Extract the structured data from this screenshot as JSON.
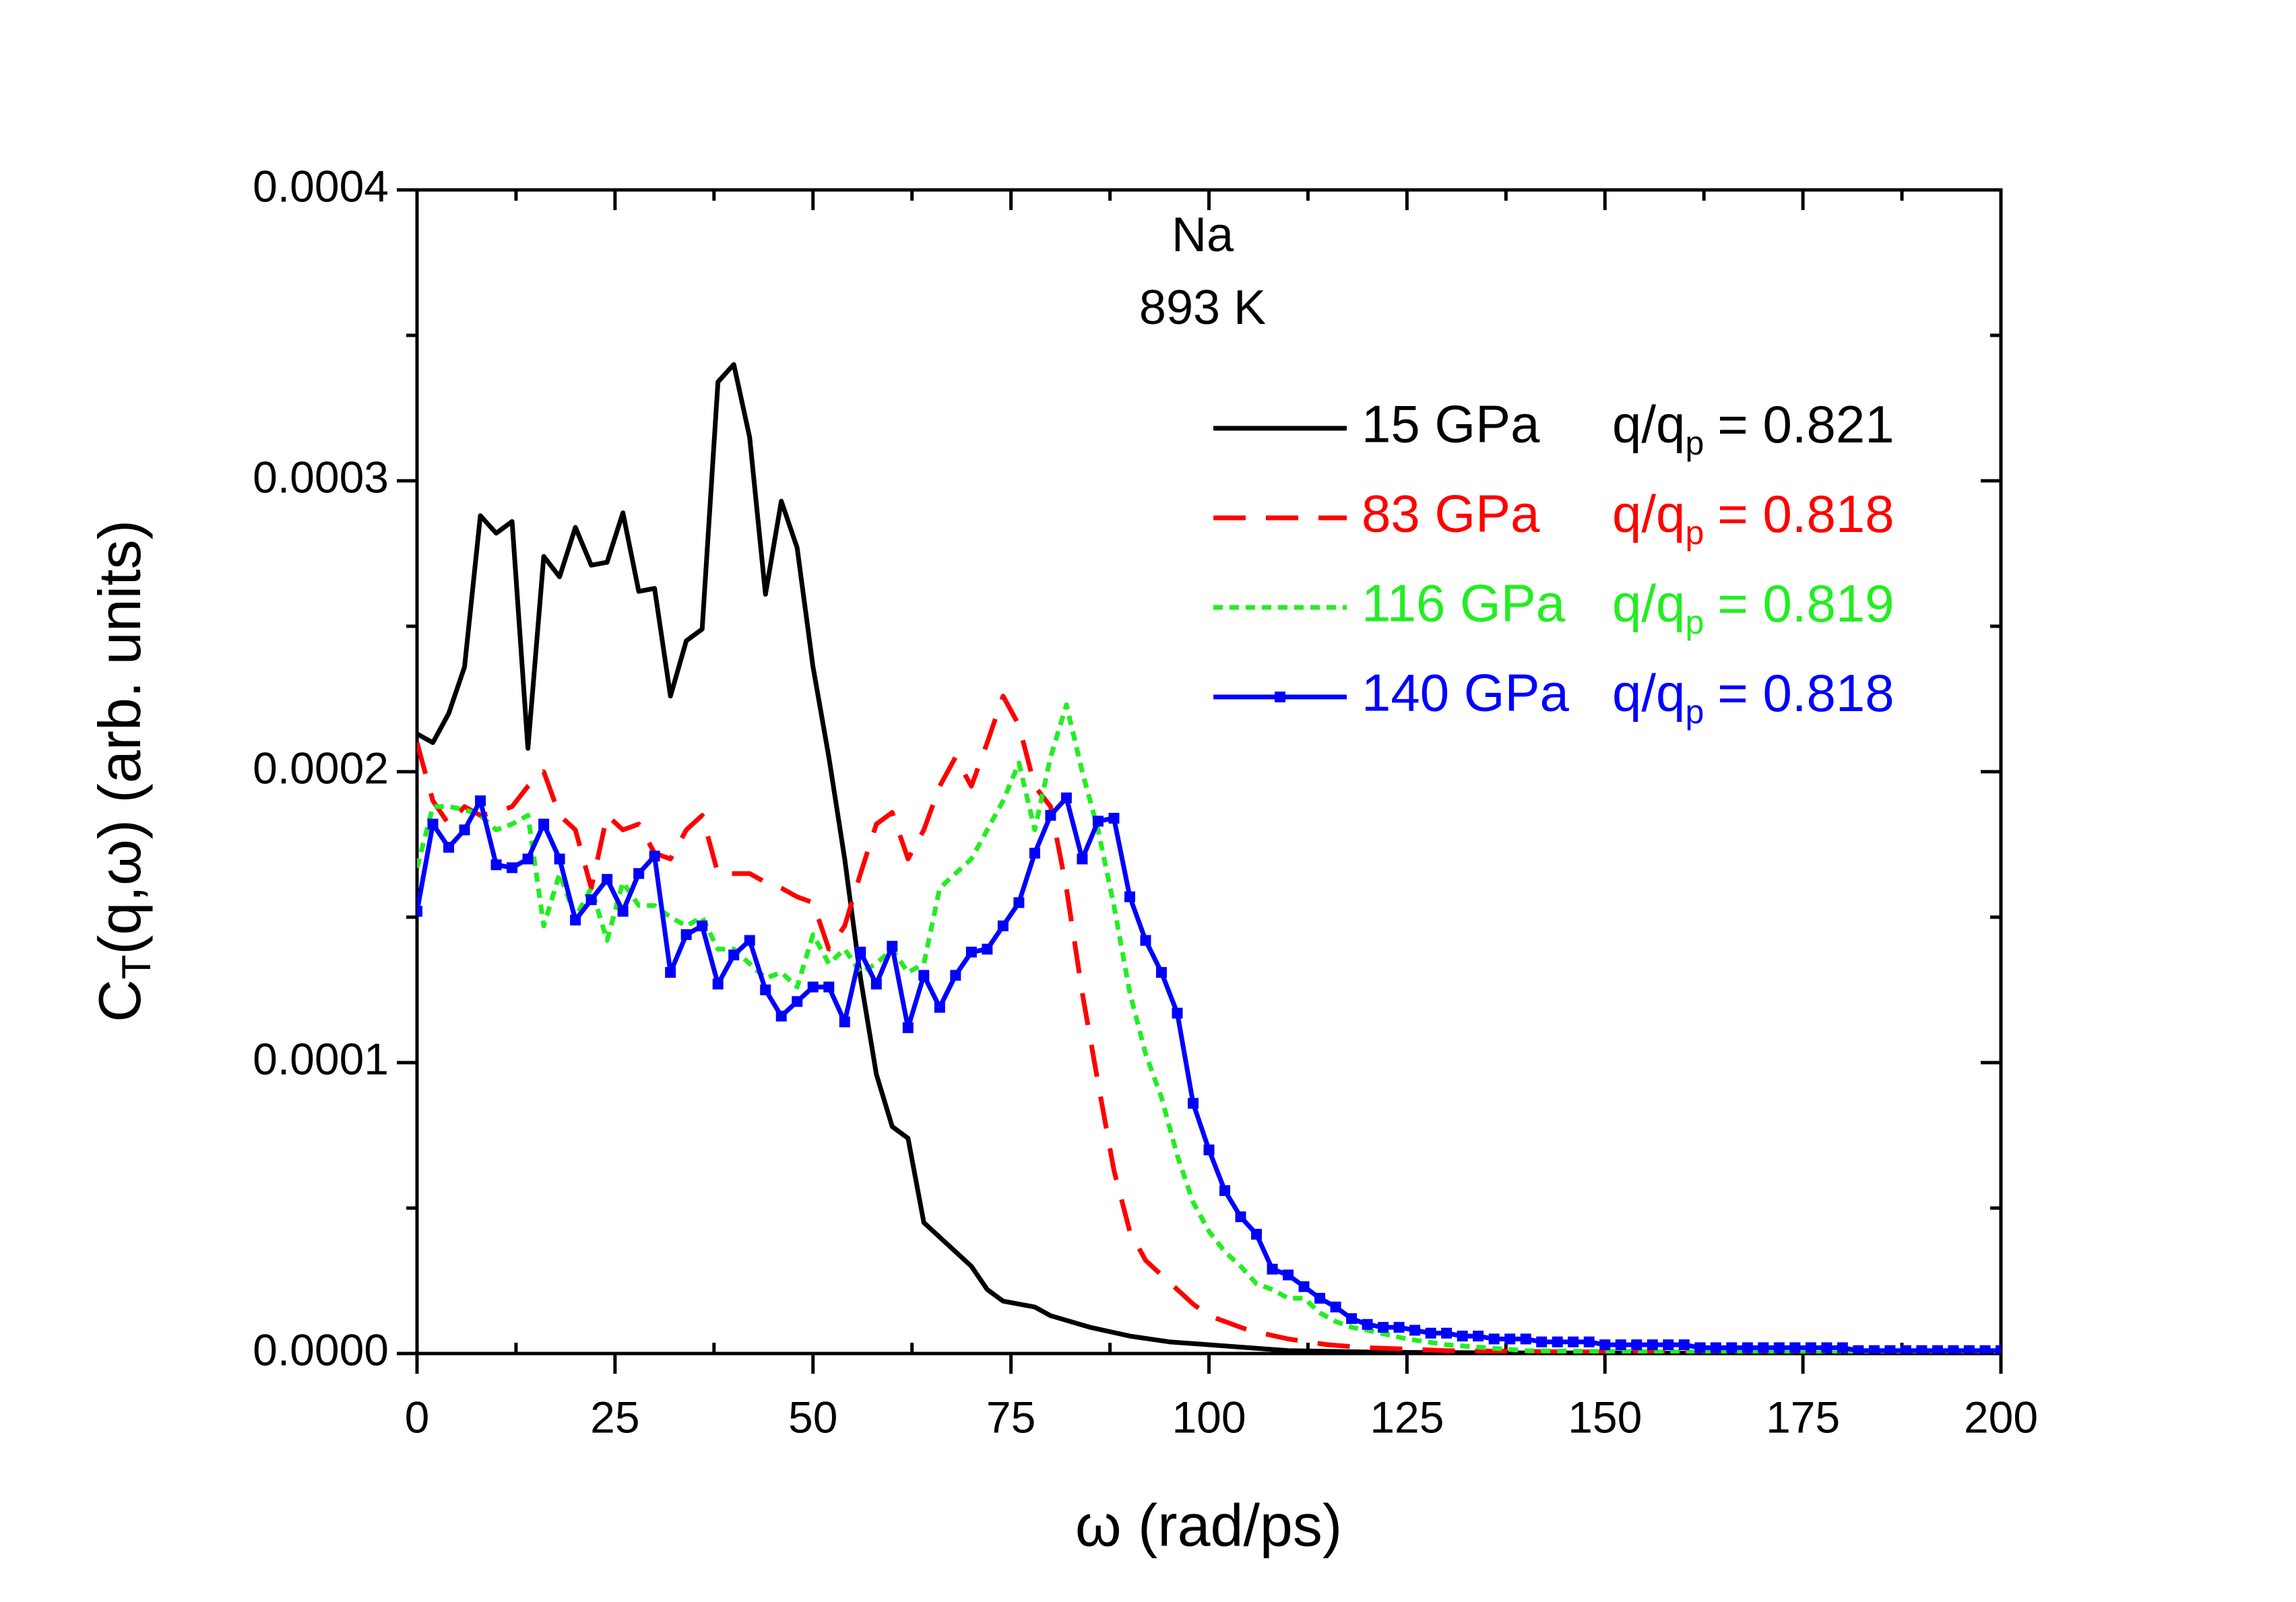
{
  "chart_data": {
    "type": "line",
    "annotations": [
      "Na",
      "893 K"
    ],
    "x_label": "ω (rad/ps)",
    "y_label": {
      "text": "C",
      "subscript": "T",
      "rest": "(q,ω) (arb. units)"
    },
    "ratio_symbol": "q/q",
    "ratio_subscript": "p",
    "xlim": [
      0,
      200
    ],
    "xticks": [
      0,
      25,
      50,
      75,
      100,
      125,
      150,
      175,
      200
    ],
    "xminor_ticks": [
      12.5,
      37.5,
      62.5,
      87.5,
      112.5,
      137.5,
      162.5,
      187.5
    ],
    "ylim": [
      0,
      0.0004
    ],
    "yticks": [
      {
        "value": 0,
        "label": "0.0000"
      },
      {
        "value": 0.0001,
        "label": "0.0001"
      },
      {
        "value": 0.0002,
        "label": "0.0002"
      },
      {
        "value": 0.0003,
        "label": "0.0003"
      },
      {
        "value": 0.0004,
        "label": "0.0004"
      }
    ],
    "yminor_ticks": [
      5e-05,
      0.00015,
      0.00025,
      0.00035
    ],
    "legend_position": "upper right",
    "series": [
      {
        "name": "15 GPa",
        "ratio": "= 0.821",
        "color": "#000000",
        "line_style": "solid",
        "x": [
          0,
          2,
          4,
          6,
          8,
          10,
          12,
          14,
          16,
          18,
          20,
          22,
          24,
          26,
          28,
          30,
          32,
          34,
          36,
          38,
          40,
          42,
          44,
          46,
          48,
          50,
          52,
          54,
          56,
          58,
          60,
          62,
          64,
          66,
          68,
          70,
          72,
          74,
          76,
          78,
          80,
          85,
          90,
          95,
          100,
          105,
          110,
          120,
          130,
          140,
          150,
          160,
          170,
          180,
          190,
          200
        ],
        "values": [
          0.000213,
          0.00021,
          0.00022,
          0.000236,
          0.000288,
          0.000282,
          0.000286,
          0.000208,
          0.000274,
          0.000267,
          0.000284,
          0.000271,
          0.000272,
          0.000289,
          0.000262,
          0.000263,
          0.000226,
          0.000245,
          0.000249,
          0.000334,
          0.00034,
          0.000315,
          0.000261,
          0.000293,
          0.000277,
          0.000236,
          0.000205,
          0.00017,
          0.000129,
          9.6e-05,
          7.8e-05,
          7.4e-05,
          4.5e-05,
          4e-05,
          3.5e-05,
          3e-05,
          2.2e-05,
          1.8e-05,
          1.7e-05,
          1.6e-05,
          1.3e-05,
          9e-06,
          6e-06,
          4e-06,
          3e-06,
          2e-06,
          1e-06,
          5e-07,
          3e-07,
          2e-07,
          2e-07,
          1e-07,
          1e-07,
          1e-07,
          1e-07,
          1e-07
        ]
      },
      {
        "name": "83 GPa",
        "ratio": "= 0.818",
        "color": "#ff0000",
        "line_style": "dash",
        "x": [
          0,
          2,
          4,
          6,
          8,
          10,
          12,
          14,
          16,
          18,
          20,
          22,
          24,
          26,
          28,
          30,
          32,
          34,
          36,
          38,
          40,
          42,
          44,
          46,
          48,
          50,
          52,
          54,
          56,
          58,
          60,
          62,
          64,
          66,
          68,
          70,
          72,
          74,
          76,
          78,
          80,
          82,
          84,
          86,
          88,
          90,
          92,
          94,
          96,
          98,
          100,
          105,
          110,
          115,
          120,
          130,
          140,
          150,
          160,
          170,
          180,
          190,
          200
        ],
        "values": [
          0.00021,
          0.00019,
          0.000182,
          0.000188,
          0.000185,
          0.000186,
          0.000188,
          0.000195,
          0.0002,
          0.000185,
          0.00018,
          0.00016,
          0.000185,
          0.00018,
          0.000182,
          0.000172,
          0.00017,
          0.00018,
          0.000185,
          0.000165,
          0.000165,
          0.000165,
          0.000162,
          0.00016,
          0.000157,
          0.000155,
          0.000139,
          0.000147,
          0.000165,
          0.000182,
          0.000186,
          0.00017,
          0.00018,
          0.000195,
          0.000205,
          0.000195,
          0.00021,
          0.000226,
          0.000216,
          0.000195,
          0.000188,
          0.00016,
          0.000124,
          9.3e-05,
          6.3e-05,
          4.2e-05,
          3.2e-05,
          2.7e-05,
          2.2e-05,
          1.7e-05,
          1.3e-05,
          8e-06,
          5e-06,
          3e-06,
          2e-06,
          1e-06,
          7e-07,
          5e-07,
          3e-07,
          2e-07,
          2e-07,
          1e-07,
          1e-07
        ]
      },
      {
        "name": "116 GPa",
        "ratio": "= 0.819",
        "color": "#22ee22",
        "line_style": "dot",
        "x": [
          0,
          2,
          4,
          6,
          8,
          10,
          12,
          14,
          16,
          18,
          20,
          22,
          24,
          26,
          28,
          30,
          32,
          34,
          36,
          38,
          40,
          42,
          44,
          46,
          48,
          50,
          52,
          54,
          56,
          58,
          60,
          62,
          64,
          66,
          68,
          70,
          72,
          74,
          76,
          78,
          80,
          82,
          84,
          86,
          88,
          90,
          92,
          94,
          96,
          98,
          100,
          102,
          104,
          106,
          108,
          110,
          112,
          114,
          116,
          118,
          120,
          125,
          130,
          135,
          140,
          150,
          160,
          170,
          180,
          190,
          200
        ],
        "values": [
          0.000167,
          0.000188,
          0.000188,
          0.000187,
          0.000185,
          0.00018,
          0.000182,
          0.000185,
          0.000147,
          0.000165,
          0.00015,
          0.00016,
          0.000142,
          0.000162,
          0.000154,
          0.000154,
          0.00015,
          0.000147,
          0.00015,
          0.000139,
          0.000139,
          0.000134,
          0.000129,
          0.000131,
          0.000126,
          0.000144,
          0.000134,
          0.000139,
          0.000131,
          0.000134,
          0.000139,
          0.000131,
          0.000134,
          0.00016,
          0.000165,
          0.00017,
          0.00018,
          0.00019,
          0.000203,
          0.00018,
          0.000205,
          0.000223,
          0.0002,
          0.00018,
          0.000154,
          0.000124,
          0.000103,
          8.8e-05,
          6.8e-05,
          5.2e-05,
          4.2e-05,
          3.5e-05,
          3e-05,
          2.4e-05,
          2.2e-05,
          1.9e-05,
          1.9e-05,
          1.4e-05,
          1.1e-05,
          9e-06,
          8e-06,
          5e-06,
          3e-06,
          2e-06,
          1e-06,
          7e-07,
          5e-07,
          3e-07,
          2e-07,
          2e-07,
          1e-07
        ]
      },
      {
        "name": "140 GPa",
        "ratio": "= 0.818",
        "color": "#0000ff",
        "line_style": "solid",
        "marker": "square",
        "x": [
          0,
          2,
          4,
          6,
          8,
          10,
          12,
          14,
          16,
          18,
          20,
          22,
          24,
          26,
          28,
          30,
          32,
          34,
          36,
          38,
          40,
          42,
          44,
          46,
          48,
          50,
          52,
          54,
          56,
          58,
          60,
          62,
          64,
          66,
          68,
          70,
          72,
          74,
          76,
          78,
          80,
          82,
          84,
          86,
          88,
          90,
          92,
          94,
          96,
          98,
          100,
          102,
          104,
          106,
          108,
          110,
          112,
          114,
          116,
          118,
          120,
          122,
          124,
          126,
          128,
          130,
          132,
          134,
          136,
          138,
          140,
          142,
          144,
          146,
          148,
          150,
          152,
          154,
          156,
          158,
          160,
          162,
          164,
          166,
          168,
          170,
          172,
          174,
          176,
          178,
          180,
          182,
          184,
          186,
          188,
          190,
          192,
          194,
          196,
          198,
          200
        ],
        "values": [
          0.000152,
          0.000182,
          0.000174,
          0.00018,
          0.00019,
          0.000168,
          0.000167,
          0.00017,
          0.000182,
          0.00017,
          0.000149,
          0.000156,
          0.000163,
          0.000152,
          0.000165,
          0.000171,
          0.000131,
          0.000144,
          0.000147,
          0.000127,
          0.000137,
          0.000142,
          0.000125,
          0.000116,
          0.000121,
          0.000126,
          0.000126,
          0.000114,
          0.000138,
          0.000127,
          0.00014,
          0.000112,
          0.00013,
          0.000119,
          0.00013,
          0.000138,
          0.000139,
          0.000147,
          0.000155,
          0.000172,
          0.000185,
          0.000191,
          0.00017,
          0.000183,
          0.000184,
          0.000157,
          0.000142,
          0.000131,
          0.000117,
          8.6e-05,
          7e-05,
          5.6e-05,
          4.7e-05,
          4.1e-05,
          2.9e-05,
          2.7e-05,
          2.3e-05,
          1.9e-05,
          1.6e-05,
          1.2e-05,
          1e-05,
          9e-06,
          9e-06,
          8e-06,
          7e-06,
          7e-06,
          6e-06,
          6e-06,
          5e-06,
          5e-06,
          5e-06,
          4e-06,
          4e-06,
          4e-06,
          4e-06,
          3e-06,
          3e-06,
          3e-06,
          3e-06,
          3e-06,
          3e-06,
          2e-06,
          2e-06,
          2e-06,
          2e-06,
          2e-06,
          2e-06,
          2e-06,
          2e-06,
          2e-06,
          2e-06,
          1e-06,
          1e-06,
          1e-06,
          1e-06,
          1e-06,
          1e-06,
          1e-06,
          1e-06,
          1e-06,
          1e-06
        ]
      }
    ]
  }
}
